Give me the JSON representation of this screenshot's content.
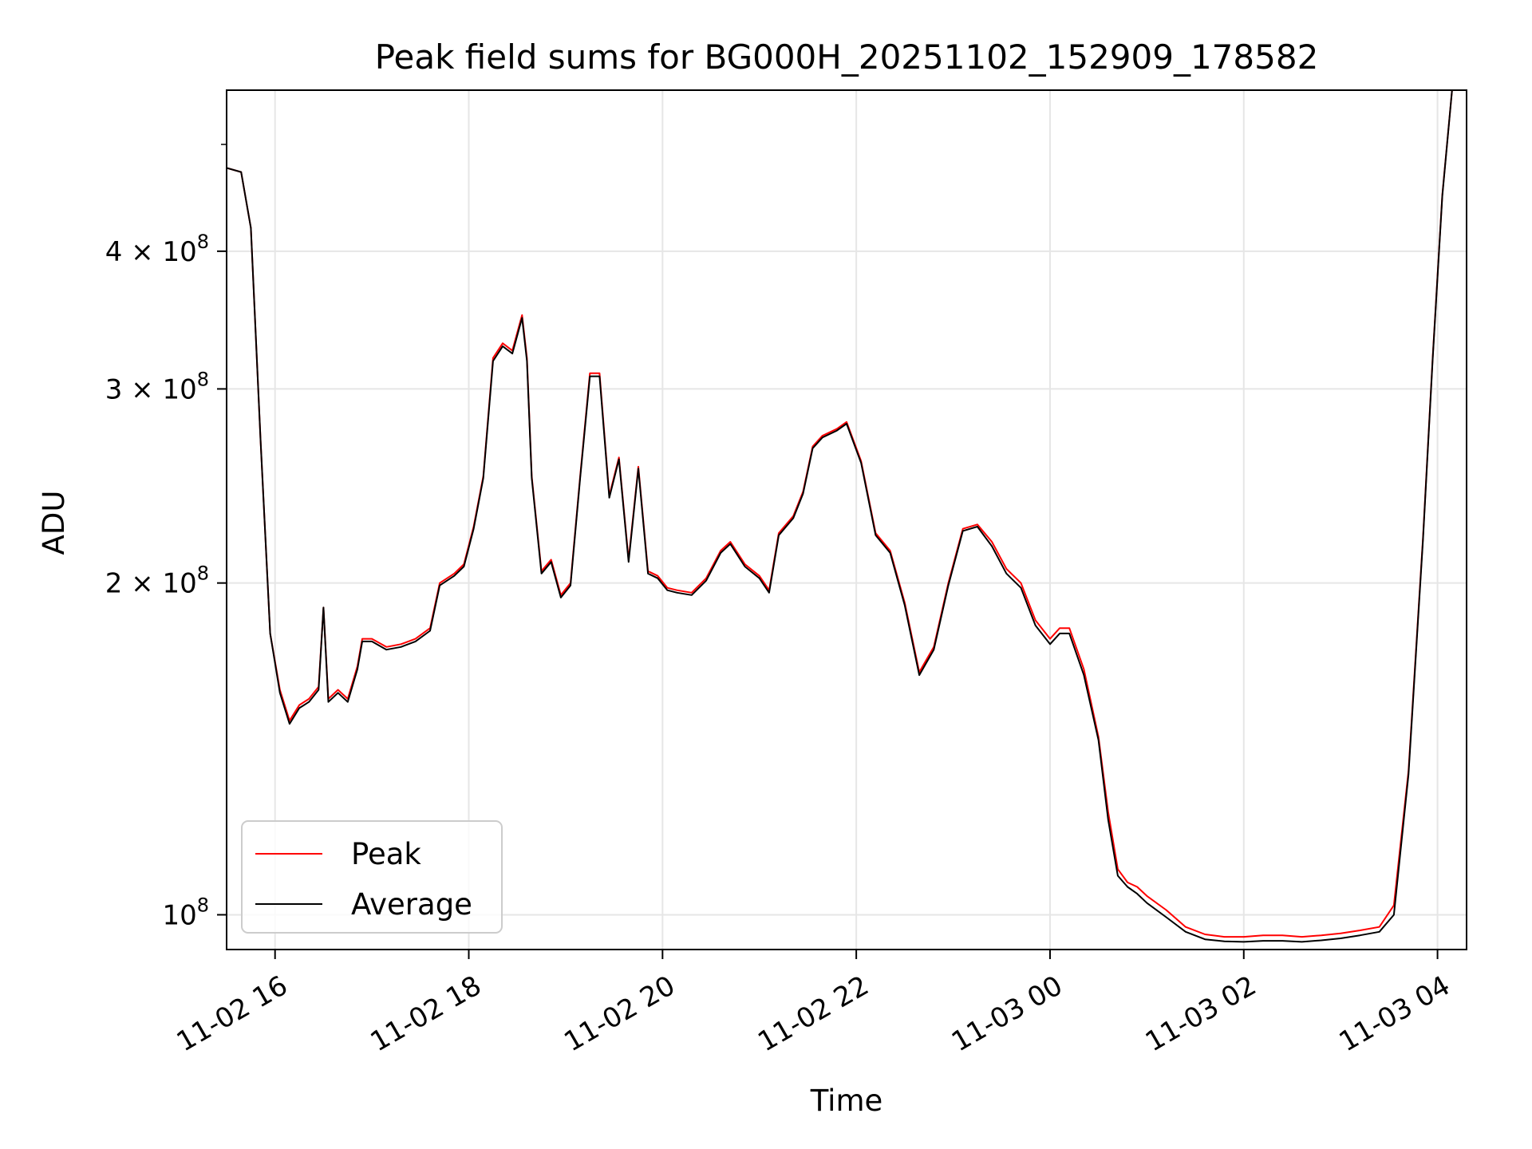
{
  "chart_data": {
    "type": "line",
    "title": "Peak field sums for BG000H_20251102_152909_178582",
    "xlabel": "Time",
    "ylabel": "ADU",
    "yscale": "log",
    "xlim": [
      15.5,
      28.3
    ],
    "ylim": [
      93000000,
      560000000
    ],
    "grid": true,
    "legend_position": "bottom-left",
    "x_unit": "hours since 2025-11-02 00:00",
    "x_ticks": [
      {
        "x": 16,
        "label": "11-02 16"
      },
      {
        "x": 18,
        "label": "11-02 18"
      },
      {
        "x": 20,
        "label": "11-02 20"
      },
      {
        "x": 22,
        "label": "11-02 22"
      },
      {
        "x": 24,
        "label": "11-03 00"
      },
      {
        "x": 26,
        "label": "11-03 02"
      },
      {
        "x": 28,
        "label": "11-03 04"
      }
    ],
    "y_ticks": [
      {
        "y": 100000000,
        "base": "10",
        "exp": "8"
      },
      {
        "y": 200000000,
        "base": "2 × 10",
        "exp": "8"
      },
      {
        "y": 300000000,
        "base": "3 × 10",
        "exp": "8"
      },
      {
        "y": 400000000,
        "base": "4 × 10",
        "exp": "8"
      }
    ],
    "y_minor_ticks": [
      500000000
    ],
    "series": [
      {
        "name": "Peak",
        "color": "#ff0000",
        "x": [
          15.5,
          15.65,
          15.75,
          15.85,
          15.95,
          16.05,
          16.15,
          16.25,
          16.35,
          16.45,
          16.5,
          16.55,
          16.65,
          16.75,
          16.85,
          16.9,
          17.0,
          17.15,
          17.3,
          17.45,
          17.6,
          17.7,
          17.85,
          17.95,
          18.05,
          18.15,
          18.25,
          18.35,
          18.45,
          18.55,
          18.6,
          18.65,
          18.75,
          18.85,
          18.95,
          19.05,
          19.15,
          19.25,
          19.35,
          19.45,
          19.55,
          19.65,
          19.75,
          19.85,
          19.95,
          20.05,
          20.15,
          20.3,
          20.45,
          20.6,
          20.7,
          20.85,
          21.0,
          21.1,
          21.2,
          21.35,
          21.45,
          21.55,
          21.65,
          21.8,
          21.9,
          22.05,
          22.2,
          22.35,
          22.5,
          22.65,
          22.8,
          22.95,
          23.1,
          23.25,
          23.4,
          23.55,
          23.7,
          23.85,
          24.0,
          24.1,
          24.2,
          24.35,
          24.5,
          24.6,
          24.7,
          24.8,
          24.9,
          25.0,
          25.2,
          25.4,
          25.6,
          25.8,
          26.0,
          26.2,
          26.4,
          26.6,
          26.8,
          27.0,
          27.2,
          27.4,
          27.55,
          27.7,
          27.85,
          27.95,
          28.05,
          28.15,
          28.3
        ],
        "y": [
          476000000,
          472000000,
          420000000,
          270000000,
          180000000,
          160000000,
          150000000,
          155000000,
          157000000,
          161000000,
          190000000,
          157000000,
          160000000,
          157000000,
          168000000,
          178000000,
          178000000,
          175000000,
          176000000,
          178000000,
          182000000,
          200000000,
          204000000,
          208000000,
          225000000,
          250000000,
          320000000,
          330000000,
          325000000,
          350000000,
          320000000,
          250000000,
          205000000,
          210000000,
          195000000,
          200000000,
          250000000,
          310000000,
          310000000,
          240000000,
          260000000,
          210000000,
          255000000,
          205000000,
          203000000,
          198000000,
          197000000,
          196000000,
          202000000,
          214000000,
          218000000,
          208000000,
          203000000,
          197000000,
          222000000,
          230000000,
          242000000,
          266000000,
          272000000,
          276000000,
          280000000,
          258000000,
          222000000,
          214000000,
          192000000,
          166000000,
          175000000,
          200000000,
          224000000,
          226000000,
          218000000,
          206000000,
          200000000,
          185000000,
          178000000,
          182000000,
          182000000,
          167000000,
          145000000,
          124000000,
          110000000,
          107000000,
          106000000,
          104000000,
          101000000,
          97500000,
          96000000,
          95500000,
          95500000,
          95800000,
          95800000,
          95500000,
          95800000,
          96200000,
          96800000,
          97500000,
          102000000,
          135000000,
          220000000,
          320000000,
          450000000,
          560000000,
          560000000
        ]
      },
      {
        "name": "Average",
        "color": "#000000",
        "x": [
          15.5,
          15.65,
          15.75,
          15.85,
          15.95,
          16.05,
          16.15,
          16.25,
          16.35,
          16.45,
          16.5,
          16.55,
          16.65,
          16.75,
          16.85,
          16.9,
          17.0,
          17.15,
          17.3,
          17.45,
          17.6,
          17.7,
          17.85,
          17.95,
          18.05,
          18.15,
          18.25,
          18.35,
          18.45,
          18.55,
          18.6,
          18.65,
          18.75,
          18.85,
          18.95,
          19.05,
          19.15,
          19.25,
          19.35,
          19.45,
          19.55,
          19.65,
          19.75,
          19.85,
          19.95,
          20.05,
          20.15,
          20.3,
          20.45,
          20.6,
          20.7,
          20.85,
          21.0,
          21.1,
          21.2,
          21.35,
          21.45,
          21.55,
          21.65,
          21.8,
          21.9,
          22.05,
          22.2,
          22.35,
          22.5,
          22.65,
          22.8,
          22.95,
          23.1,
          23.25,
          23.4,
          23.55,
          23.7,
          23.85,
          24.0,
          24.1,
          24.2,
          24.35,
          24.5,
          24.6,
          24.7,
          24.8,
          24.9,
          25.0,
          25.2,
          25.4,
          25.6,
          25.8,
          26.0,
          26.2,
          26.4,
          26.6,
          26.8,
          27.0,
          27.2,
          27.4,
          27.55,
          27.7,
          27.85,
          27.95,
          28.05,
          28.15,
          28.3
        ],
        "y": [
          476000000,
          472000000,
          420000000,
          270000000,
          180000000,
          159000000,
          149000000,
          154000000,
          156000000,
          160000000,
          190000000,
          156000000,
          159000000,
          156000000,
          167000000,
          177000000,
          177000000,
          174000000,
          175000000,
          177000000,
          181000000,
          199000000,
          203000000,
          207000000,
          224000000,
          249000000,
          318000000,
          328000000,
          323000000,
          348000000,
          318000000,
          249000000,
          204000000,
          209000000,
          194000000,
          199000000,
          249000000,
          308000000,
          308000000,
          239000000,
          259000000,
          209000000,
          254000000,
          204000000,
          202000000,
          197000000,
          196000000,
          195000000,
          201000000,
          213000000,
          217000000,
          207000000,
          202000000,
          196000000,
          221000000,
          229000000,
          241000000,
          265000000,
          271000000,
          275000000,
          279000000,
          257000000,
          221000000,
          213000000,
          191000000,
          165000000,
          174000000,
          199000000,
          223000000,
          225000000,
          216000000,
          204000000,
          198000000,
          183000000,
          176000000,
          180000000,
          180000000,
          165000000,
          144000000,
          122000000,
          108500000,
          106000000,
          104500000,
          102500000,
          99500000,
          96500000,
          95000000,
          94600000,
          94500000,
          94700000,
          94700000,
          94500000,
          94800000,
          95200000,
          95800000,
          96500000,
          100000000,
          134000000,
          219000000,
          319000000,
          449000000,
          560000000,
          560000000
        ]
      }
    ]
  }
}
